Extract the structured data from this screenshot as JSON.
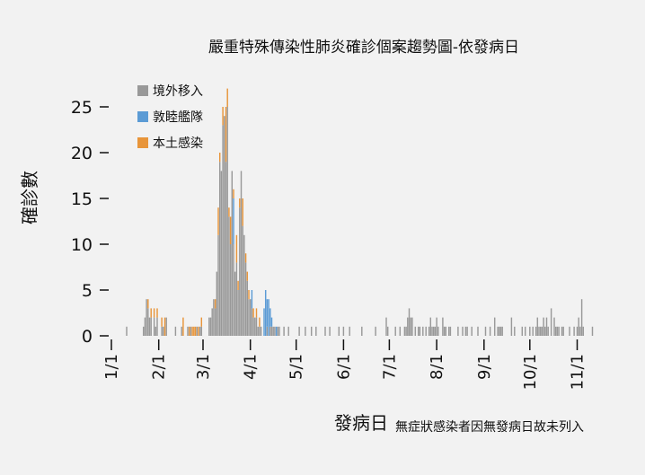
{
  "chart_data": {
    "type": "bar",
    "stacked": true,
    "title": "嚴重特殊傳染性肺炎確診個案趨勢圖-依發病日",
    "ylabel": "確診數",
    "xlabel": "發病日",
    "xlabel_note": "無症狀感染者因無發病日故未列入",
    "ylim": [
      0,
      25
    ],
    "yticks": [
      0,
      5,
      10,
      15,
      20,
      25
    ],
    "ytick_labels": [
      "0",
      "5",
      "10",
      "15",
      "20",
      "25"
    ],
    "x_start_date": "1/1",
    "xticks": [
      {
        "label": "1/1",
        "day": 0
      },
      {
        "label": "2/1",
        "day": 31
      },
      {
        "label": "3/1",
        "day": 60
      },
      {
        "label": "4/1",
        "day": 91
      },
      {
        "label": "5/1",
        "day": 121
      },
      {
        "label": "6/1",
        "day": 152
      },
      {
        "label": "7/1",
        "day": 182
      },
      {
        "label": "8/1",
        "day": 213
      },
      {
        "label": "9/1",
        "day": 244
      },
      {
        "label": "10/1",
        "day": 274
      },
      {
        "label": "11/1",
        "day": 305
      }
    ],
    "legend": {
      "position": "top-left"
    },
    "grid": false,
    "series": [
      {
        "name": "境外移入",
        "color": "#999999",
        "points": [
          [
            10,
            1
          ],
          [
            21,
            1
          ],
          [
            22,
            2
          ],
          [
            23,
            4
          ],
          [
            24,
            3
          ],
          [
            25,
            2
          ],
          [
            26,
            2
          ],
          [
            28,
            2
          ],
          [
            29,
            1
          ],
          [
            30,
            2
          ],
          [
            33,
            1
          ],
          [
            34,
            1
          ],
          [
            36,
            2
          ],
          [
            42,
            1
          ],
          [
            46,
            1
          ],
          [
            50,
            1
          ],
          [
            52,
            1
          ],
          [
            56,
            1
          ],
          [
            58,
            1
          ],
          [
            59,
            1
          ],
          [
            64,
            2
          ],
          [
            65,
            2
          ],
          [
            66,
            3
          ],
          [
            67,
            4
          ],
          [
            68,
            3
          ],
          [
            69,
            7
          ],
          [
            70,
            11
          ],
          [
            71,
            19
          ],
          [
            72,
            18
          ],
          [
            73,
            23
          ],
          [
            74,
            24
          ],
          [
            75,
            19
          ],
          [
            76,
            25
          ],
          [
            77,
            13
          ],
          [
            78,
            10
          ],
          [
            79,
            18
          ],
          [
            80,
            10
          ],
          [
            81,
            7
          ],
          [
            82,
            8
          ],
          [
            83,
            5
          ],
          [
            84,
            14
          ],
          [
            85,
            18
          ],
          [
            86,
            12
          ],
          [
            87,
            11
          ],
          [
            88,
            8
          ],
          [
            89,
            6
          ],
          [
            90,
            4
          ],
          [
            91,
            4
          ],
          [
            92,
            3
          ],
          [
            93,
            2
          ],
          [
            94,
            2
          ],
          [
            95,
            2
          ],
          [
            96,
            1
          ],
          [
            97,
            1
          ],
          [
            98,
            1
          ],
          [
            102,
            1
          ],
          [
            104,
            1
          ],
          [
            105,
            1
          ],
          [
            106,
            1
          ],
          [
            107,
            1
          ],
          [
            109,
            1
          ],
          [
            110,
            1
          ],
          [
            113,
            1
          ],
          [
            116,
            1
          ],
          [
            123,
            1
          ],
          [
            127,
            1
          ],
          [
            131,
            1
          ],
          [
            134,
            1
          ],
          [
            140,
            1
          ],
          [
            143,
            1
          ],
          [
            149,
            1
          ],
          [
            152,
            1
          ],
          [
            156,
            1
          ],
          [
            164,
            1
          ],
          [
            173,
            1
          ],
          [
            180,
            2
          ],
          [
            181,
            1
          ],
          [
            186,
            1
          ],
          [
            189,
            1
          ],
          [
            192,
            1
          ],
          [
            193,
            1
          ],
          [
            194,
            2
          ],
          [
            195,
            3
          ],
          [
            196,
            2
          ],
          [
            197,
            2
          ],
          [
            199,
            1
          ],
          [
            201,
            1
          ],
          [
            202,
            1
          ],
          [
            204,
            1
          ],
          [
            206,
            1
          ],
          [
            208,
            1
          ],
          [
            209,
            2
          ],
          [
            210,
            1
          ],
          [
            211,
            1
          ],
          [
            212,
            1
          ],
          [
            213,
            2
          ],
          [
            214,
            1
          ],
          [
            217,
            2
          ],
          [
            218,
            1
          ],
          [
            219,
            1
          ],
          [
            221,
            1
          ],
          [
            222,
            1
          ],
          [
            227,
            1
          ],
          [
            230,
            1
          ],
          [
            232,
            1
          ],
          [
            233,
            1
          ],
          [
            236,
            1
          ],
          [
            240,
            1
          ],
          [
            245,
            1
          ],
          [
            248,
            1
          ],
          [
            251,
            2
          ],
          [
            253,
            1
          ],
          [
            254,
            1
          ],
          [
            255,
            1
          ],
          [
            256,
            1
          ],
          [
            262,
            2
          ],
          [
            264,
            1
          ],
          [
            269,
            1
          ],
          [
            271,
            1
          ],
          [
            274,
            1
          ],
          [
            276,
            1
          ],
          [
            278,
            1
          ],
          [
            279,
            2
          ],
          [
            280,
            1
          ],
          [
            281,
            1
          ],
          [
            282,
            1
          ],
          [
            283,
            2
          ],
          [
            284,
            1
          ],
          [
            285,
            2
          ],
          [
            286,
            1
          ],
          [
            288,
            3
          ],
          [
            290,
            2
          ],
          [
            291,
            1
          ],
          [
            292,
            1
          ],
          [
            293,
            1
          ],
          [
            295,
            1
          ],
          [
            296,
            1
          ],
          [
            300,
            1
          ],
          [
            303,
            1
          ],
          [
            305,
            1
          ],
          [
            306,
            2
          ],
          [
            307,
            1
          ],
          [
            308,
            4
          ],
          [
            309,
            1
          ],
          [
            315,
            1
          ]
        ]
      },
      {
        "name": "敦睦艦隊",
        "color": "#5b9bd5",
        "points": [
          [
            80,
            5
          ],
          [
            92,
            2
          ],
          [
            100,
            3
          ],
          [
            101,
            5
          ],
          [
            102,
            3
          ],
          [
            103,
            4
          ],
          [
            104,
            2
          ],
          [
            105,
            1
          ],
          [
            108,
            1
          ]
        ]
      },
      {
        "name": "本土感染",
        "color": "#e8953a",
        "points": [
          [
            24,
            1
          ],
          [
            26,
            1
          ],
          [
            28,
            1
          ],
          [
            30,
            1
          ],
          [
            33,
            1
          ],
          [
            35,
            2
          ],
          [
            47,
            2
          ],
          [
            51,
            1
          ],
          [
            53,
            1
          ],
          [
            54,
            1
          ],
          [
            55,
            1
          ],
          [
            57,
            1
          ],
          [
            59,
            1
          ],
          [
            68,
            1
          ],
          [
            70,
            3
          ],
          [
            71,
            1
          ],
          [
            73,
            2
          ],
          [
            75,
            6
          ],
          [
            76,
            2
          ],
          [
            77,
            1
          ],
          [
            78,
            3
          ],
          [
            80,
            1
          ],
          [
            82,
            3
          ],
          [
            83,
            1
          ],
          [
            84,
            1
          ],
          [
            86,
            3
          ],
          [
            88,
            1
          ],
          [
            89,
            1
          ],
          [
            90,
            1
          ],
          [
            93,
            1
          ],
          [
            95,
            1
          ],
          [
            97,
            1
          ]
        ]
      }
    ]
  }
}
